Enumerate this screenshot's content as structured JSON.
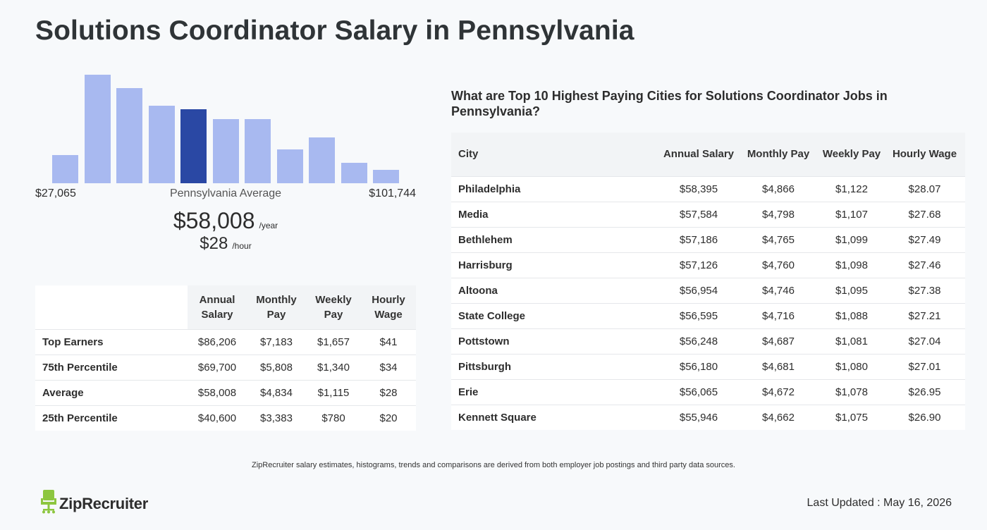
{
  "page": {
    "title": "Solutions Coordinator Salary in Pennsylvania"
  },
  "histogram": {
    "min_label": "$27,065",
    "max_label": "$101,744",
    "avg_label": "Pennsylvania Average",
    "annual_value": "$58,008",
    "annual_unit": "/year",
    "hourly_value": "$28",
    "hourly_unit": "/hour",
    "bar_color": "#a8b9f0",
    "highlight_color": "#2a48a4",
    "highlight_index": 4,
    "relative_heights": [
      0.21,
      0.81,
      0.71,
      0.58,
      0.55,
      0.48,
      0.48,
      0.25,
      0.34,
      0.15,
      0.1
    ]
  },
  "percentile_table": {
    "headers": [
      "Annual Salary",
      "Monthly Pay",
      "Weekly Pay",
      "Hourly Wage"
    ],
    "rows": [
      {
        "name": "Top Earners",
        "values": [
          "$86,206",
          "$7,183",
          "$1,657",
          "$41"
        ]
      },
      {
        "name": "75th Percentile",
        "values": [
          "$69,700",
          "$5,808",
          "$1,340",
          "$34"
        ]
      },
      {
        "name": "Average",
        "values": [
          "$58,008",
          "$4,834",
          "$1,115",
          "$28"
        ]
      },
      {
        "name": "25th Percentile",
        "values": [
          "$40,600",
          "$3,383",
          "$780",
          "$20"
        ]
      }
    ]
  },
  "cities": {
    "heading": "What are Top 10 Highest Paying Cities for Solutions Coordinator Jobs in Pennsylvania?",
    "headers": [
      "City",
      "Annual Salary",
      "Monthly Pay",
      "Weekly Pay",
      "Hourly Wage"
    ],
    "rows": [
      {
        "name": "Philadelphia",
        "values": [
          "$58,395",
          "$4,866",
          "$1,122",
          "$28.07"
        ]
      },
      {
        "name": "Media",
        "values": [
          "$57,584",
          "$4,798",
          "$1,107",
          "$27.68"
        ]
      },
      {
        "name": "Bethlehem",
        "values": [
          "$57,186",
          "$4,765",
          "$1,099",
          "$27.49"
        ]
      },
      {
        "name": "Harrisburg",
        "values": [
          "$57,126",
          "$4,760",
          "$1,098",
          "$27.46"
        ]
      },
      {
        "name": "Altoona",
        "values": [
          "$56,954",
          "$4,746",
          "$1,095",
          "$27.38"
        ]
      },
      {
        "name": "State College",
        "values": [
          "$56,595",
          "$4,716",
          "$1,088",
          "$27.21"
        ]
      },
      {
        "name": "Pottstown",
        "values": [
          "$56,248",
          "$4,687",
          "$1,081",
          "$27.04"
        ]
      },
      {
        "name": "Pittsburgh",
        "values": [
          "$56,180",
          "$4,681",
          "$1,080",
          "$27.01"
        ]
      },
      {
        "name": "Erie",
        "values": [
          "$56,065",
          "$4,672",
          "$1,078",
          "$26.95"
        ]
      },
      {
        "name": "Kennett Square",
        "values": [
          "$55,946",
          "$4,662",
          "$1,075",
          "$26.90"
        ]
      }
    ]
  },
  "footer": {
    "disclaimer": "ZipRecruiter salary estimates, histograms, trends and comparisons are derived from both employer job postings and third party data sources.",
    "logo_text": "ZipRecruiter",
    "logo_icon": "chair-icon",
    "logo_color": "#8dc63f",
    "last_updated": "Last Updated : May 16, 2026"
  }
}
